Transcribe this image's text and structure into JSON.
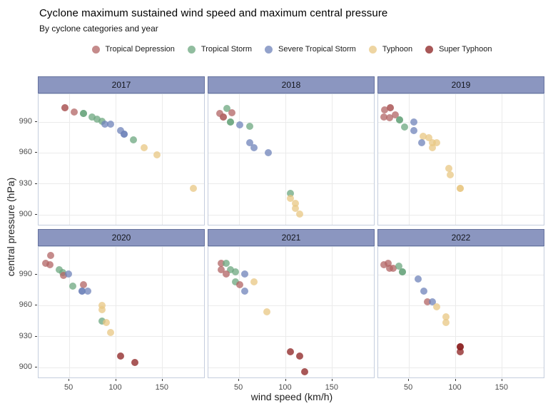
{
  "header": {
    "title": "Cyclone maximum sustained wind speed and maximum central pressure",
    "subtitle": "By cyclone categories and year"
  },
  "chart_data": {
    "type": "scatter",
    "facet_by": "year",
    "title": "Cyclone maximum sustained wind speed and maximum central pressure",
    "subtitle": "By cyclone categories and year",
    "xlabel": "wind speed (km/h)",
    "ylabel": "central pressure (hPa)",
    "x_ticks": [
      50,
      100,
      150
    ],
    "y_ticks": [
      990,
      960,
      930,
      900
    ],
    "x_domain": [
      17,
      196
    ],
    "y_domain": [
      889,
      1017
    ],
    "grid": "major-only",
    "legend_position": "top-center",
    "point_alpha": 0.75,
    "categories": [
      {
        "label": "Tropical Depression",
        "color": "#b26464"
      },
      {
        "label": "Tropical Storm",
        "color": "#6ca77f"
      },
      {
        "label": "Severe Tropical Storm",
        "color": "#6f83ba"
      },
      {
        "label": "Typhoon",
        "color": "#e8c783"
      },
      {
        "label": "Super Typhoon",
        "color": "#8b1f1f"
      }
    ],
    "point_format": [
      "category_index",
      "wind_kmh",
      "pressure_hpa",
      "overlap_count"
    ],
    "facets": [
      {
        "year": "2017",
        "points": [
          [
            0,
            45,
            1004,
            2
          ],
          [
            0,
            55,
            1000,
            1
          ],
          [
            1,
            65,
            998,
            2
          ],
          [
            1,
            74,
            995,
            1
          ],
          [
            1,
            80,
            993,
            1
          ],
          [
            1,
            85,
            991,
            1
          ],
          [
            2,
            88,
            988,
            1
          ],
          [
            2,
            94,
            988,
            1
          ],
          [
            2,
            105,
            982,
            1
          ],
          [
            2,
            109,
            978,
            2
          ],
          [
            1,
            119,
            973,
            1
          ],
          [
            3,
            130,
            965,
            1
          ],
          [
            3,
            144,
            958,
            1
          ],
          [
            3,
            183,
            926,
            1
          ]
        ]
      },
      {
        "year": "2018",
        "points": [
          [
            1,
            37,
            1003,
            1
          ],
          [
            0,
            42,
            999,
            1
          ],
          [
            0,
            29,
            998,
            1
          ],
          [
            0,
            33,
            995,
            2
          ],
          [
            1,
            41,
            990,
            2
          ],
          [
            2,
            51,
            987,
            1
          ],
          [
            1,
            61,
            986,
            1
          ],
          [
            2,
            61,
            970,
            1
          ],
          [
            2,
            66,
            965,
            1
          ],
          [
            2,
            81,
            960,
            1
          ],
          [
            1,
            105,
            921,
            1
          ],
          [
            3,
            105,
            916,
            1
          ],
          [
            3,
            110,
            911,
            1
          ],
          [
            3,
            110,
            906,
            1
          ],
          [
            3,
            115,
            901,
            1
          ]
        ]
      },
      {
        "year": "2019",
        "points": [
          [
            0,
            30,
            1004,
            2
          ],
          [
            0,
            24,
            1002,
            1
          ],
          [
            0,
            35,
            997,
            1
          ],
          [
            0,
            23,
            995,
            1
          ],
          [
            0,
            29,
            994,
            1
          ],
          [
            1,
            40,
            992,
            2
          ],
          [
            1,
            45,
            985,
            1
          ],
          [
            2,
            55,
            990,
            1
          ],
          [
            2,
            55,
            982,
            1
          ],
          [
            3,
            65,
            976,
            1
          ],
          [
            3,
            71,
            975,
            1
          ],
          [
            2,
            64,
            970,
            1
          ],
          [
            3,
            75,
            970,
            1
          ],
          [
            3,
            80,
            970,
            1
          ],
          [
            3,
            75,
            965,
            1
          ],
          [
            3,
            93,
            945,
            1
          ],
          [
            3,
            94,
            939,
            1
          ],
          [
            3,
            105,
            926,
            2
          ]
        ]
      },
      {
        "year": "2020",
        "points": [
          [
            0,
            30,
            1009,
            1
          ],
          [
            0,
            25,
            1001,
            1
          ],
          [
            0,
            29,
            1000,
            1
          ],
          [
            1,
            39,
            995,
            1
          ],
          [
            1,
            43,
            992,
            1
          ],
          [
            0,
            44,
            989,
            1
          ],
          [
            2,
            49,
            991,
            1
          ],
          [
            1,
            54,
            979,
            1
          ],
          [
            0,
            65,
            980,
            1
          ],
          [
            2,
            64,
            974,
            2
          ],
          [
            2,
            70,
            974,
            1
          ],
          [
            3,
            85,
            960,
            1
          ],
          [
            3,
            85,
            956,
            1
          ],
          [
            1,
            85,
            945,
            1
          ],
          [
            3,
            90,
            944,
            1
          ],
          [
            3,
            94,
            934,
            1
          ],
          [
            4,
            105,
            911,
            1
          ],
          [
            4,
            120,
            905,
            1
          ]
        ]
      },
      {
        "year": "2021",
        "points": [
          [
            0,
            31,
            1001,
            1
          ],
          [
            1,
            36,
            1001,
            1
          ],
          [
            0,
            31,
            995,
            1
          ],
          [
            1,
            41,
            995,
            1
          ],
          [
            0,
            36,
            991,
            1
          ],
          [
            1,
            46,
            993,
            1
          ],
          [
            2,
            56,
            991,
            1
          ],
          [
            1,
            46,
            983,
            1
          ],
          [
            0,
            51,
            980,
            1
          ],
          [
            3,
            66,
            983,
            1
          ],
          [
            2,
            56,
            974,
            1
          ],
          [
            3,
            80,
            954,
            1
          ],
          [
            4,
            105,
            915,
            1
          ],
          [
            4,
            115,
            911,
            1
          ],
          [
            4,
            120,
            896,
            1
          ]
        ]
      },
      {
        "year": "2022",
        "points": [
          [
            0,
            23,
            1000,
            1
          ],
          [
            0,
            28,
            1001,
            1
          ],
          [
            0,
            29,
            996,
            1
          ],
          [
            0,
            33,
            996,
            1
          ],
          [
            1,
            39,
            998,
            1
          ],
          [
            1,
            43,
            993,
            2
          ],
          [
            2,
            60,
            986,
            1
          ],
          [
            2,
            66,
            974,
            1
          ],
          [
            0,
            70,
            964,
            1
          ],
          [
            2,
            75,
            964,
            1
          ],
          [
            3,
            80,
            959,
            1
          ],
          [
            3,
            90,
            949,
            1
          ],
          [
            3,
            90,
            944,
            1
          ],
          [
            4,
            105,
            920,
            2
          ],
          [
            4,
            105,
            915,
            1
          ]
        ]
      }
    ]
  },
  "theme": {
    "strip_bg": "#8b96c0",
    "strip_border": "#67739f",
    "panel_border": "#c5cede",
    "gridline": "#ebebeb",
    "tick_label": "#4d4d4d"
  }
}
